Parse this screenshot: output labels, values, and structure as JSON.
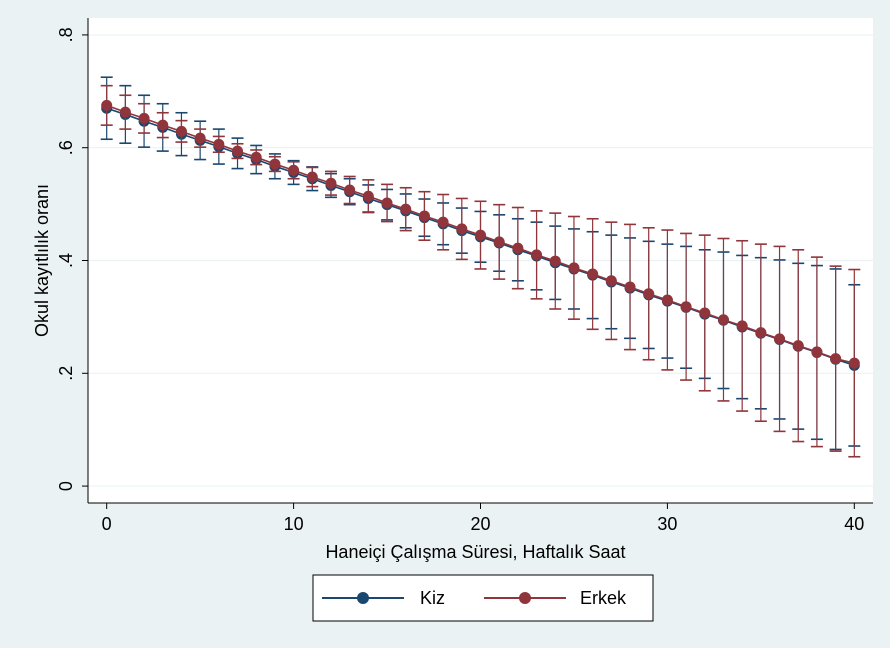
{
  "colors": {
    "outer_background": "#eaf2f3",
    "plot_background": "#ffffff",
    "gridline": "#eaf2f3",
    "kiz": "#1a476f",
    "erkek": "#90353b"
  },
  "chart_data": {
    "type": "line",
    "title": "",
    "xlabel": "Haneiçi Çalışma Süresi, Haftalık Saat",
    "ylabel": "Okul kayıtlılık oranı",
    "xlim": [
      -1,
      41
    ],
    "ylim": [
      -0.03,
      0.83
    ],
    "x_ticks": [
      0,
      10,
      20,
      30,
      40
    ],
    "x_tick_labels": [
      "0",
      "10",
      "20",
      "30",
      "40"
    ],
    "y_ticks": [
      0,
      0.2,
      0.4,
      0.6,
      0.8
    ],
    "y_tick_labels": [
      "0",
      ".2",
      ".4",
      ".6",
      ".8"
    ],
    "grid": true,
    "legend_position": "bottom",
    "x": [
      0,
      1,
      2,
      3,
      4,
      5,
      6,
      7,
      8,
      9,
      10,
      11,
      12,
      13,
      14,
      15,
      16,
      17,
      18,
      19,
      20,
      21,
      22,
      23,
      24,
      25,
      26,
      27,
      28,
      29,
      30,
      31,
      32,
      33,
      34,
      35,
      36,
      37,
      38,
      39,
      40
    ],
    "series": [
      {
        "name": "Kiz",
        "color": "#1a476f",
        "values": [
          0.67,
          0.659,
          0.647,
          0.636,
          0.624,
          0.613,
          0.602,
          0.59,
          0.579,
          0.567,
          0.556,
          0.545,
          0.533,
          0.522,
          0.51,
          0.499,
          0.488,
          0.476,
          0.465,
          0.453,
          0.442,
          0.431,
          0.419,
          0.408,
          0.396,
          0.385,
          0.374,
          0.362,
          0.351,
          0.339,
          0.328,
          0.317,
          0.305,
          0.294,
          0.282,
          0.271,
          0.26,
          0.248,
          0.237,
          0.225,
          0.214
        ],
        "ci_low": [
          0.615,
          0.608,
          0.601,
          0.594,
          0.586,
          0.579,
          0.571,
          0.563,
          0.554,
          0.545,
          0.535,
          0.524,
          0.512,
          0.499,
          0.486,
          0.472,
          0.458,
          0.443,
          0.428,
          0.413,
          0.397,
          0.381,
          0.364,
          0.348,
          0.331,
          0.314,
          0.297,
          0.279,
          0.262,
          0.244,
          0.227,
          0.209,
          0.191,
          0.173,
          0.155,
          0.137,
          0.119,
          0.101,
          0.083,
          0.065,
          0.071
        ],
        "ci_high": [
          0.725,
          0.71,
          0.693,
          0.678,
          0.662,
          0.647,
          0.633,
          0.617,
          0.604,
          0.589,
          0.577,
          0.566,
          0.554,
          0.545,
          0.534,
          0.526,
          0.518,
          0.509,
          0.502,
          0.493,
          0.487,
          0.481,
          0.474,
          0.468,
          0.461,
          0.456,
          0.451,
          0.445,
          0.44,
          0.434,
          0.429,
          0.425,
          0.419,
          0.415,
          0.409,
          0.405,
          0.401,
          0.395,
          0.391,
          0.385,
          0.357
        ]
      },
      {
        "name": "Erkek",
        "color": "#90353b",
        "values": [
          0.675,
          0.663,
          0.652,
          0.64,
          0.629,
          0.617,
          0.606,
          0.594,
          0.583,
          0.571,
          0.56,
          0.548,
          0.537,
          0.525,
          0.514,
          0.502,
          0.491,
          0.479,
          0.468,
          0.456,
          0.445,
          0.433,
          0.422,
          0.41,
          0.399,
          0.387,
          0.376,
          0.364,
          0.353,
          0.341,
          0.33,
          0.318,
          0.307,
          0.295,
          0.284,
          0.272,
          0.261,
          0.249,
          0.238,
          0.226,
          0.218
        ],
        "ci_low": [
          0.64,
          0.633,
          0.626,
          0.618,
          0.61,
          0.601,
          0.592,
          0.581,
          0.57,
          0.558,
          0.545,
          0.531,
          0.516,
          0.501,
          0.485,
          0.469,
          0.453,
          0.436,
          0.419,
          0.402,
          0.385,
          0.367,
          0.35,
          0.332,
          0.314,
          0.296,
          0.278,
          0.26,
          0.242,
          0.224,
          0.206,
          0.188,
          0.169,
          0.151,
          0.133,
          0.115,
          0.097,
          0.079,
          0.07,
          0.062,
          0.052
        ],
        "ci_high": [
          0.71,
          0.693,
          0.678,
          0.662,
          0.648,
          0.633,
          0.62,
          0.607,
          0.596,
          0.584,
          0.575,
          0.565,
          0.558,
          0.549,
          0.543,
          0.535,
          0.529,
          0.522,
          0.517,
          0.51,
          0.505,
          0.499,
          0.494,
          0.488,
          0.484,
          0.478,
          0.474,
          0.468,
          0.464,
          0.458,
          0.454,
          0.448,
          0.445,
          0.439,
          0.435,
          0.429,
          0.425,
          0.419,
          0.406,
          0.39,
          0.384
        ]
      }
    ]
  }
}
